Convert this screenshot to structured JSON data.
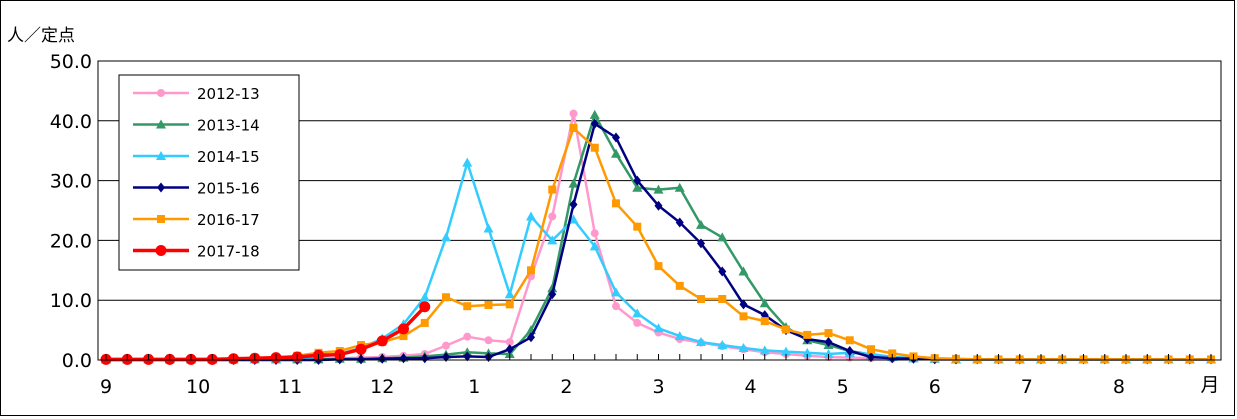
{
  "chart_data": {
    "type": "line",
    "ylabel": "人／定点",
    "xunit": "月",
    "ylim": [
      0,
      50
    ],
    "yticks": [
      "0.0",
      "10.0",
      "20.0",
      "30.0",
      "40.0",
      "50.0"
    ],
    "month_labels": [
      "9",
      "10",
      "11",
      "12",
      "1",
      "2",
      "3",
      "4",
      "5",
      "6",
      "7",
      "8"
    ],
    "week_count": 53,
    "grid": "horizontal",
    "legend_position": "top-left",
    "series": [
      {
        "name": "2012-13",
        "color": "#ff99cc",
        "marker": "circle",
        "values": [
          0.1,
          0.1,
          0.1,
          0.1,
          0.1,
          0.1,
          0.1,
          0.1,
          0.1,
          0.2,
          0.2,
          0.3,
          0.4,
          0.5,
          0.7,
          1.0,
          2.4,
          3.9,
          3.3,
          3.0,
          14.0,
          24.0,
          41.2,
          21.2,
          9.0,
          6.2,
          4.6,
          3.5,
          2.9,
          2.3,
          1.8,
          1.3,
          1.0,
          0.7,
          0.5,
          0.4,
          0.3,
          0.2,
          0.2,
          0.1,
          0.1,
          0.1,
          0.1,
          0.1,
          0.1,
          0.1,
          0.1,
          0.1,
          0.1,
          0.1,
          0.1,
          0.1,
          0.1
        ]
      },
      {
        "name": "2013-14",
        "color": "#339966",
        "marker": "triangle",
        "values": [
          0.1,
          0.1,
          0.1,
          0.1,
          0.1,
          0.1,
          0.1,
          0.1,
          0.1,
          0.1,
          0.1,
          0.2,
          0.2,
          0.3,
          0.4,
          0.6,
          0.9,
          1.3,
          1.1,
          1.0,
          5.0,
          12.0,
          29.5,
          41.0,
          34.5,
          28.8,
          28.5,
          28.8,
          22.6,
          20.5,
          14.8,
          9.5,
          5.5,
          3.3,
          2.5,
          1.5,
          0.9,
          0.5,
          0.3,
          0.2,
          0.1,
          0.1,
          0.1,
          0.1,
          0.1,
          0.1,
          0.1,
          0.1,
          0.1,
          0.1,
          0.1,
          0.1,
          0.1
        ]
      },
      {
        "name": "2014-15",
        "color": "#33ccff",
        "marker": "triangle",
        "values": [
          0.1,
          0.1,
          0.1,
          0.1,
          0.1,
          0.1,
          0.1,
          0.1,
          0.2,
          0.3,
          0.5,
          1.0,
          2.0,
          3.6,
          6.0,
          10.5,
          20.5,
          33.0,
          22.0,
          11.0,
          24.0,
          20.0,
          23.5,
          19.0,
          11.3,
          7.8,
          5.3,
          4.0,
          3.0,
          2.5,
          2.0,
          1.6,
          1.4,
          1.2,
          1.0,
          1.2,
          1.0,
          0.5,
          0.3,
          0.2,
          0.1,
          0.1,
          0.1,
          0.1,
          0.1,
          0.1,
          0.1,
          0.1,
          0.1,
          0.1,
          0.1,
          0.1,
          0.1
        ]
      },
      {
        "name": "2015-16",
        "color": "#000080",
        "marker": "diamond",
        "values": [
          0.0,
          0.0,
          0.0,
          0.0,
          0.0,
          0.0,
          0.0,
          0.0,
          0.0,
          0.0,
          0.0,
          0.1,
          0.1,
          0.2,
          0.3,
          0.3,
          0.5,
          0.6,
          0.5,
          1.8,
          3.8,
          11.0,
          26.0,
          39.5,
          37.2,
          30.0,
          25.8,
          23.0,
          19.5,
          14.8,
          9.3,
          7.5,
          5.0,
          3.5,
          3.0,
          1.5,
          0.5,
          0.3,
          0.2,
          0.1,
          0.1,
          0.1,
          0.1,
          0.1,
          0.1,
          0.1,
          0.1,
          0.1,
          0.1,
          0.1,
          0.1,
          0.1,
          0.1
        ]
      },
      {
        "name": "2016-17",
        "color": "#ff9900",
        "marker": "square",
        "values": [
          0.1,
          0.1,
          0.1,
          0.1,
          0.1,
          0.1,
          0.2,
          0.3,
          0.4,
          0.7,
          1.2,
          1.5,
          2.5,
          3.0,
          4.0,
          6.2,
          10.5,
          9.0,
          9.2,
          9.3,
          15.0,
          28.5,
          38.8,
          35.5,
          26.2,
          22.3,
          15.7,
          12.4,
          10.2,
          10.2,
          7.3,
          6.5,
          5.1,
          4.2,
          4.5,
          3.3,
          1.8,
          1.1,
          0.6,
          0.3,
          0.2,
          0.1,
          0.1,
          0.1,
          0.1,
          0.1,
          0.1,
          0.1,
          0.1,
          0.1,
          0.1,
          0.1,
          0.1
        ]
      },
      {
        "name": "2017-18",
        "color": "#ff0000",
        "marker": "circle",
        "values": [
          0.1,
          0.1,
          0.1,
          0.1,
          0.1,
          0.1,
          0.2,
          0.3,
          0.4,
          0.5,
          0.8,
          0.9,
          1.8,
          3.2,
          5.2,
          8.9
        ]
      }
    ]
  }
}
